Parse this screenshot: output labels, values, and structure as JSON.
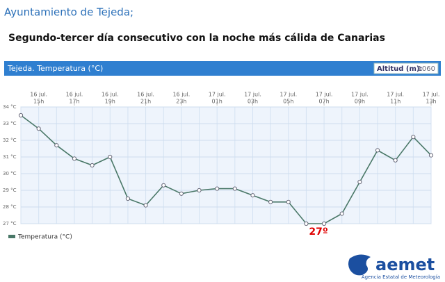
{
  "header": {
    "title": "Ayuntamiento de Tejeda;",
    "subtitle": "Segundo-tercer día consecutivo con la noche más cálida de Canarias"
  },
  "panel": {
    "title": "Tejeda. Temperatura (°C)",
    "altitude_label": "Altitud (m):",
    "altitude_value": "1060"
  },
  "logo": {
    "name": "aemet",
    "agency": "Agencia Estatal de Meteorología"
  },
  "chart_data": {
    "type": "line",
    "categories": [
      null,
      [
        "16 jul.",
        "15h"
      ],
      null,
      [
        "16 jul.",
        "17h"
      ],
      null,
      [
        "16 jul.",
        "19h"
      ],
      null,
      [
        "16 jul.",
        "21h"
      ],
      null,
      [
        "16 jul.",
        "23h"
      ],
      null,
      [
        "17 jul.",
        "01h"
      ],
      null,
      [
        "17 jul.",
        "03h"
      ],
      null,
      [
        "17 jul.",
        "05h"
      ],
      null,
      [
        "17 jul.",
        "07h"
      ],
      null,
      [
        "17 jul.",
        "09h"
      ],
      null,
      [
        "17 jul.",
        "11h"
      ],
      null,
      [
        "17 jul.",
        "13h"
      ]
    ],
    "series": [
      {
        "name": "Temperatura (°C)",
        "color": "#4a7868",
        "values": [
          33.5,
          32.7,
          31.7,
          30.9,
          30.5,
          31.0,
          28.5,
          28.1,
          29.3,
          28.8,
          29.0,
          29.1,
          29.1,
          28.7,
          28.3,
          28.3,
          27.0,
          27.0,
          27.6,
          29.5,
          31.4,
          30.8,
          32.2,
          31.1
        ]
      }
    ],
    "ylim": [
      27,
      34
    ],
    "yticks": [
      {
        "value": 27,
        "label": "27 °C"
      },
      {
        "value": 28,
        "label": "28 °C"
      },
      {
        "value": 29,
        "label": "29 °C"
      },
      {
        "value": 30,
        "label": "30 °C"
      },
      {
        "value": 31,
        "label": "31 °C"
      },
      {
        "value": 32,
        "label": "32 °C"
      },
      {
        "value": 33,
        "label": "33 °C"
      },
      {
        "value": 34,
        "label": "34 °C"
      }
    ],
    "grid": true,
    "annotations": [
      {
        "text": "27º",
        "category": 17,
        "color": "#e00000"
      }
    ]
  }
}
